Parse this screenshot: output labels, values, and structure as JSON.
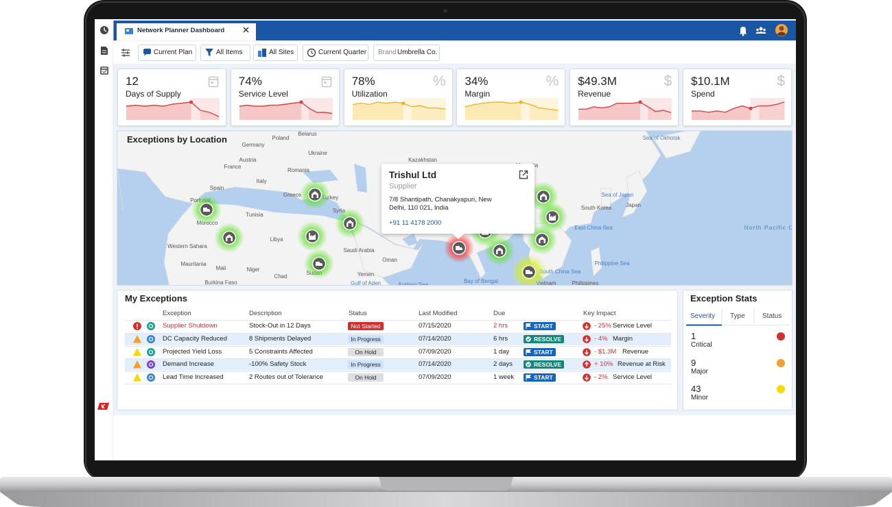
{
  "tab": {
    "title": "Network Planner Dashboard"
  },
  "toolbar": {
    "filters": [
      "Current Plan",
      "All Items",
      "All Sites",
      "Current Quarter"
    ],
    "brand_label": "Brand",
    "brand_value": "Umbrella Co."
  },
  "kpis": [
    {
      "value": "12",
      "label": "Days of Supply",
      "color": "#d64545",
      "fill": "#f4b9b9",
      "history": [
        6,
        6.5,
        6,
        6.5,
        6,
        7,
        7.5,
        8
      ],
      "forecast": [
        4,
        3,
        1
      ]
    },
    {
      "value": "74%",
      "label": "Service Level",
      "color": "#d64545",
      "fill": "#f4b9b9",
      "history": [
        6,
        6.5,
        6,
        6,
        6.5,
        6.5,
        7,
        7.5,
        8
      ],
      "forecast": [
        5,
        3,
        3,
        2.5
      ]
    },
    {
      "value": "78%",
      "label": "Utilization",
      "symbol": "%",
      "color": "#f0b429",
      "fill": "#fbe3a0",
      "history": [
        6,
        6.5,
        6,
        7,
        6.5,
        7,
        6.5
      ],
      "forecast": [
        5,
        5.5,
        4.5,
        4.5,
        4
      ]
    },
    {
      "value": "34%",
      "label": "Margin",
      "symbol": "%",
      "color": "#f0b429",
      "fill": "#fbe3a0",
      "history": [
        5,
        6,
        6.5,
        7,
        7,
        6.5,
        7
      ],
      "forecast": [
        6,
        4.5,
        4,
        3.5
      ]
    },
    {
      "value": "$49.3M",
      "label": "Revenue",
      "symbol": "$",
      "color": "#d64545",
      "fill": "#f4b9b9",
      "history": [
        4,
        4,
        5,
        4.5,
        5,
        6.5,
        6.5,
        6.5,
        7
      ],
      "forecast": [
        5,
        3,
        3.5,
        2.5
      ]
    },
    {
      "value": "$10.1M",
      "label": "Spend",
      "symbol": "$",
      "color": "#d64545",
      "fill": "#f4b9b9",
      "history": [
        3,
        3,
        2.5,
        3,
        2.5,
        4,
        5,
        4
      ],
      "forecast": [
        5,
        5,
        5.5,
        6.5
      ]
    }
  ],
  "map": {
    "title": "Exceptions by Location",
    "labels": [
      "Belarus",
      "Poland",
      "Germany",
      "Ukraine",
      "Austria",
      "Kazakhstan",
      "France",
      "Romania",
      "Mongolia",
      "Italy",
      "Spain",
      "Greece",
      "Turkey",
      "Portugal",
      "Syria",
      "Morocco",
      "Tunisia",
      "Libya",
      "Saudi Arabia",
      "Western Sahara",
      "Mauritania",
      "Mali",
      "Niger",
      "Chad",
      "Sudan",
      "Burkina Faso",
      "Yemen",
      "Oman",
      "Gulf of Aden",
      "Arabian Sea",
      "Bay of Bengal",
      "Sea of Okhotsk",
      "Sea of Japan",
      "South Korea",
      "Japan",
      "East China Sea",
      "North Pacific Ocean",
      "Philippine Sea",
      "South China Sea",
      "Vietnam",
      "Philippines"
    ],
    "popup": {
      "name": "Trishul Ltd",
      "type": "Supplier",
      "address": "7/8 Shantipath, Chanakyapuri, New Delhi, 110 021, India",
      "phone": "+91 11 4178 2000"
    }
  },
  "exceptions": {
    "title": "My Exceptions",
    "columns": [
      "Exception",
      "Description",
      "Status",
      "Last Modified",
      "Due",
      "Key Impact"
    ],
    "rows": [
      {
        "exception": "Supplier Shutdown",
        "description": "Stock-Out in 12 Days",
        "status": "Not Started",
        "status_color": "#d32f2f",
        "last_modified": "07/15/2020",
        "due": "2 hrs",
        "action": "START",
        "action_color": "#1565c0",
        "impact": "- 25%",
        "impact_metric": "Service Level"
      },
      {
        "exception": "DC Capacity Reduced",
        "description": "8 Shipments Delayed",
        "status": "In Progress",
        "status_color": "#cfe1f6",
        "last_modified": "07/14/2020",
        "due": "6 hrs",
        "action": "RESOLVE",
        "action_color": "#12877a",
        "impact": "- 4%",
        "impact_metric": "Margin"
      },
      {
        "exception": "Projected Yield Loss",
        "description": "5 Constraints Affected",
        "status": "On Hold",
        "status_color": "#dedede",
        "last_modified": "07/09/2020",
        "due": "1 day",
        "action": "START",
        "action_color": "#1565c0",
        "impact": "- $1.3M",
        "impact_metric": "Revenue"
      },
      {
        "exception": "Demand Increase",
        "description": "-100% Safety Stock",
        "status": "In Progress",
        "status_color": "#cfe1f6",
        "last_modified": "07/14/2020",
        "due": "2 days",
        "action": "RESOLVE",
        "action_color": "#12877a",
        "impact": "+ 10%",
        "impact_metric": "Revenue at Risk"
      },
      {
        "exception": "Lead Time Increased",
        "description": "2 Routes out of Tolerance",
        "status": "On Hold",
        "status_color": "#dedede",
        "last_modified": "07/09/2020",
        "due": "1 week",
        "action": "START",
        "action_color": "#1565c0",
        "impact": "- 2%",
        "impact_metric": "Service Level"
      }
    ]
  },
  "stats": {
    "title": "Exception Stats",
    "tabs": [
      "Severity",
      "Type",
      "Status"
    ],
    "items": [
      {
        "count": 1,
        "label": "Critical",
        "color": "#d32f2f"
      },
      {
        "count": 9,
        "label": "Major",
        "color": "#f5a02a"
      },
      {
        "count": 43,
        "label": "Minor",
        "color": "#f7d800"
      }
    ]
  }
}
